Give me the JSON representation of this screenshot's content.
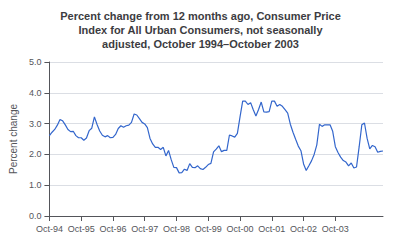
{
  "chart_data": {
    "type": "line",
    "title": "Percent change from 12 months ago, Consumer Price\nIndex for All Urban Consumers, not seasonally\nadjusted, October 1994–October 2003",
    "ylabel": "Percent change",
    "categories": [
      "Oct-94",
      null,
      null,
      null,
      null,
      null,
      null,
      null,
      null,
      null,
      null,
      null,
      "Oct-95",
      null,
      null,
      null,
      null,
      null,
      null,
      null,
      null,
      null,
      null,
      null,
      "Oct-96",
      null,
      null,
      null,
      null,
      null,
      null,
      null,
      null,
      null,
      null,
      null,
      "Oct-97",
      null,
      null,
      null,
      null,
      null,
      null,
      null,
      null,
      null,
      null,
      null,
      "Oct-98",
      null,
      null,
      null,
      null,
      null,
      null,
      null,
      null,
      null,
      null,
      null,
      "Oct-99",
      null,
      null,
      null,
      null,
      null,
      null,
      null,
      null,
      null,
      null,
      null,
      "Oct-00",
      null,
      null,
      null,
      null,
      null,
      null,
      null,
      null,
      null,
      null,
      null,
      "Oct-01",
      null,
      null,
      null,
      null,
      null,
      null,
      null,
      null,
      null,
      null,
      null,
      "Oct-02",
      null,
      null,
      null,
      null,
      null,
      null,
      null,
      null,
      null,
      null,
      null,
      "Oct-03",
      null,
      null,
      null,
      null,
      null,
      null,
      null,
      null,
      null,
      null,
      null,
      null,
      null,
      null,
      null,
      null,
      null,
      null
    ],
    "values": [
      2.61,
      2.72,
      2.81,
      2.95,
      3.13,
      3.09,
      2.96,
      2.81,
      2.74,
      2.75,
      2.61,
      2.54,
      2.54,
      2.46,
      2.53,
      2.77,
      2.85,
      3.22,
      2.97,
      2.76,
      2.62,
      2.57,
      2.61,
      2.54,
      2.55,
      2.65,
      2.84,
      2.93,
      2.88,
      2.93,
      2.95,
      3.04,
      3.31,
      3.28,
      3.16,
      3.04,
      2.99,
      2.87,
      2.52,
      2.34,
      2.23,
      2.23,
      2.16,
      2.23,
      1.95,
      2.13,
      1.83,
      1.58,
      1.57,
      1.4,
      1.41,
      1.52,
      1.48,
      1.7,
      1.58,
      1.57,
      1.63,
      1.54,
      1.51,
      1.58,
      1.67,
      1.71,
      2.08,
      2.17,
      2.28,
      2.09,
      2.13,
      2.13,
      2.63,
      2.6,
      2.56,
      2.68,
      3.22,
      3.73,
      3.73,
      3.62,
      3.68,
      3.45,
      3.25,
      3.46,
      3.7,
      3.38,
      3.37,
      3.39,
      3.73,
      3.73,
      3.56,
      3.62,
      3.56,
      3.45,
      3.34,
      2.98,
      2.72,
      2.49,
      2.27,
      2.12,
      1.69,
      1.48,
      1.63,
      1.79,
      2.0,
      2.31,
      2.98,
      2.91,
      2.96,
      2.96,
      2.96,
      2.75,
      2.25,
      2.06,
      1.91,
      1.8,
      1.75,
      1.63,
      1.72,
      1.56,
      1.59,
      2.25,
      2.96,
      3.02,
      2.52,
      2.18,
      2.29,
      2.25,
      2.07,
      2.1,
      2.11
    ],
    "color": "#3366cc",
    "ylim": [
      0.0,
      5.0
    ],
    "yticks": [
      {
        "value": 0.0,
        "label": "0.0"
      },
      {
        "value": 1.0,
        "label": "1.0"
      },
      {
        "value": 2.0,
        "label": "2.0"
      },
      {
        "value": 3.0,
        "label": "3.0"
      },
      {
        "value": 4.0,
        "label": "4.0"
      },
      {
        "value": 5.0,
        "label": "5.0"
      }
    ],
    "grid": true
  }
}
